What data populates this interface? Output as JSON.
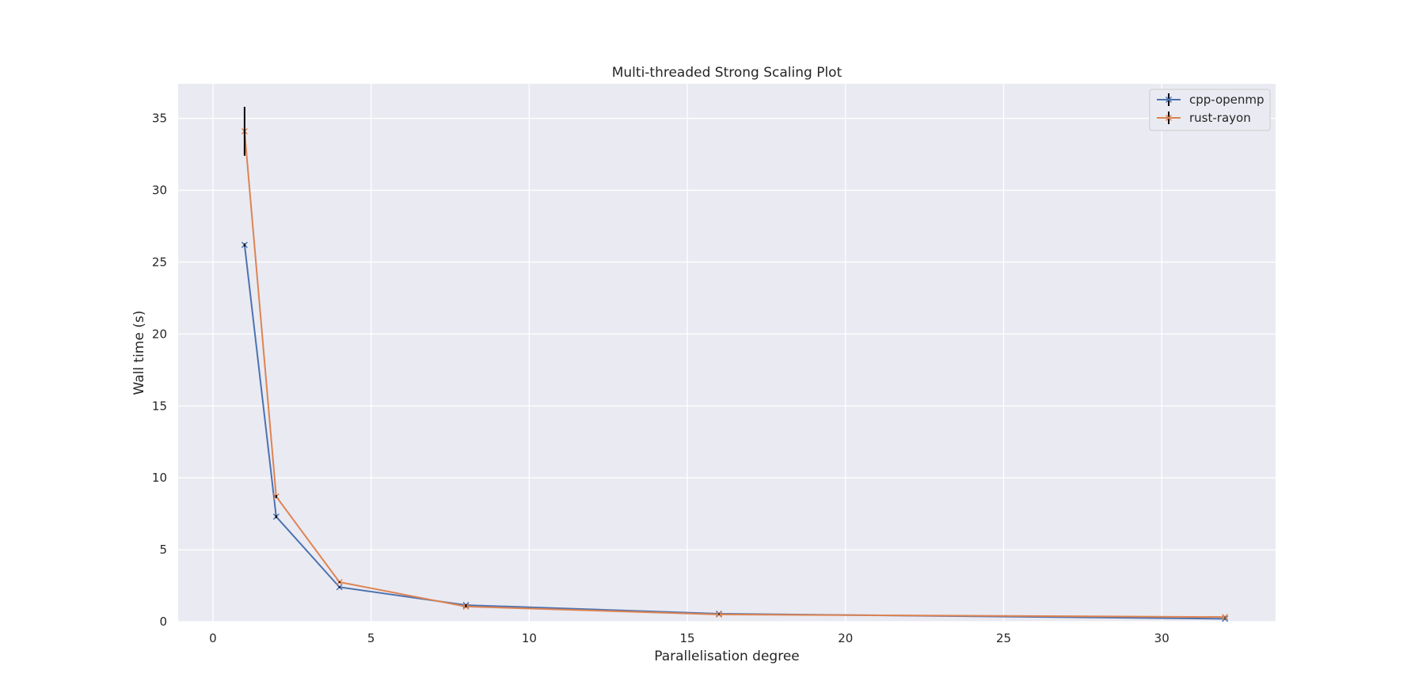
{
  "chart_data": {
    "type": "line",
    "title": "Multi-threaded Strong Scaling Plot",
    "xlabel": "Parallelisation degree",
    "ylabel": "Wall time (s)",
    "xlim": [
      -1.1,
      33.6
    ],
    "ylim": [
      0,
      37.4
    ],
    "xticks": [
      0,
      5,
      10,
      15,
      20,
      25,
      30
    ],
    "yticks": [
      0,
      5,
      10,
      15,
      20,
      25,
      30,
      35
    ],
    "grid": true,
    "legend_position": "top-right",
    "series": [
      {
        "name": "cpp-openmp",
        "color": "#4c72b0",
        "marker": "x",
        "x": [
          1,
          2,
          4,
          8,
          16,
          32
        ],
        "y": [
          26.2,
          7.3,
          2.4,
          1.15,
          0.55,
          0.2
        ],
        "yerr": [
          0.1,
          0.1,
          0.05,
          0.05,
          0.02,
          0.02
        ]
      },
      {
        "name": "rust-rayon",
        "color": "#dd8452",
        "marker": "x",
        "x": [
          1,
          2,
          4,
          8,
          16,
          32
        ],
        "y": [
          34.1,
          8.7,
          2.75,
          1.05,
          0.5,
          0.32
        ],
        "yerr": [
          1.7,
          0.1,
          0.05,
          0.05,
          0.02,
          0.02
        ]
      }
    ],
    "errorbar_color": "#000000"
  }
}
